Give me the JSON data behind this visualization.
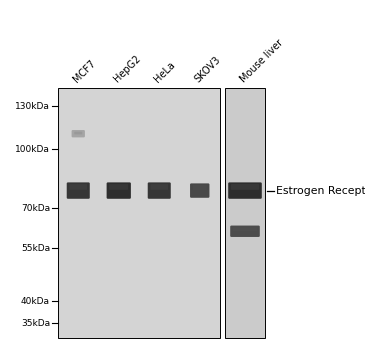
{
  "bg_color_p1": "#d4d4d4",
  "bg_color_p2": "#cbcbcb",
  "white_bg": "#ffffff",
  "lane_labels": [
    "MCF7",
    "HepG2",
    "HeLa",
    "SKOV3",
    "Mouse liver"
  ],
  "mw_markers": [
    "130kDa",
    "100kDa",
    "70kDa",
    "55kDa",
    "40kDa",
    "35kDa"
  ],
  "mw_values": [
    130,
    100,
    70,
    55,
    40,
    35
  ],
  "annotation": "Estrogen Receptor alpha",
  "band_dark": "#222222",
  "band_medium": "#3a3a3a",
  "band_faint": "#666666",
  "main_band_mw": 78,
  "secondary_band_mw": 61,
  "faint_band_mw": 110
}
